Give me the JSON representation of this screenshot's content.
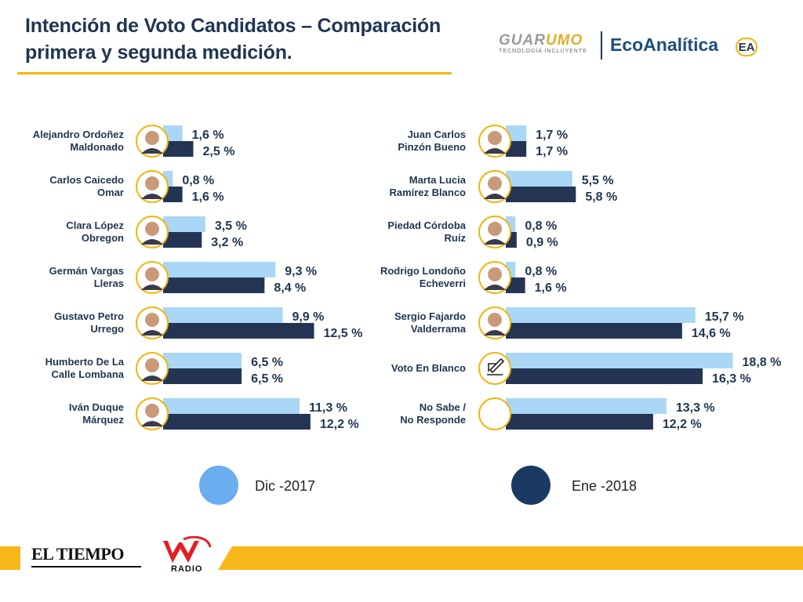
{
  "title": "Intención de Voto Candidatos – Comparación primera y segunda medición.",
  "logos": {
    "guarumo_main_a": "GUAR",
    "guarumo_main_b": "UMO",
    "guarumo_sub": "TECNOLOGÍA INCLUYENTE",
    "ecoanalitica": "EcoAnalítica",
    "ea": "EA",
    "eltiempo": "EL TIEMPO",
    "wradio": "RADIO"
  },
  "colors": {
    "dic": "#a9d7f5",
    "ene": "#243554",
    "accent": "#f2b40c"
  },
  "chart_data": {
    "type": "bar",
    "orientation": "horizontal",
    "title": "Intención de Voto Candidatos – Comparación primera y segunda medición.",
    "series_names": [
      "Dic -2017",
      "Ene -2018"
    ],
    "xlim": [
      0,
      20
    ],
    "unit": "%",
    "left_panel": [
      {
        "name": [
          "Alejandro Ordoñez",
          "Maldonado"
        ],
        "dic": 1.6,
        "ene": 2.5,
        "dic_label": "1,6 %",
        "ene_label": "2,5 %",
        "icon": "portrait-icon"
      },
      {
        "name": [
          "Carlos Caicedo",
          "Omar"
        ],
        "dic": 0.8,
        "ene": 1.6,
        "dic_label": "0,8 %",
        "ene_label": "1,6 %",
        "icon": "portrait-icon"
      },
      {
        "name": [
          "Clara López",
          "Obregon"
        ],
        "dic": 3.5,
        "ene": 3.2,
        "dic_label": "3,5 %",
        "ene_label": "3,2 %",
        "icon": "portrait-icon"
      },
      {
        "name": [
          "Germán Vargas",
          "Lleras"
        ],
        "dic": 9.3,
        "ene": 8.4,
        "dic_label": "9,3 %",
        "ene_label": "8,4 %",
        "icon": "portrait-icon"
      },
      {
        "name": [
          "Gustavo Petro",
          "Urrego"
        ],
        "dic": 9.9,
        "ene": 12.5,
        "dic_label": "9,9 %",
        "ene_label": "12,5 %",
        "icon": "portrait-icon"
      },
      {
        "name": [
          "Humberto De La",
          "Calle Lombana"
        ],
        "dic": 6.5,
        "ene": 6.5,
        "dic_label": "6,5 %",
        "ene_label": "6,5 %",
        "icon": "portrait-icon"
      },
      {
        "name": [
          "Iván Duque",
          "Márquez"
        ],
        "dic": 11.3,
        "ene": 12.2,
        "dic_label": "11,3 %",
        "ene_label": "12,2 %",
        "icon": "portrait-icon"
      }
    ],
    "right_panel": [
      {
        "name": [
          "Juan Carlos",
          "Pinzón Bueno"
        ],
        "dic": 1.7,
        "ene": 1.7,
        "dic_label": "1,7 %",
        "ene_label": "1,7 %",
        "icon": "portrait-icon"
      },
      {
        "name": [
          "Marta Lucia",
          "Ramírez Blanco"
        ],
        "dic": 5.5,
        "ene": 5.8,
        "dic_label": "5,5 %",
        "ene_label": "5,8 %",
        "icon": "portrait-icon"
      },
      {
        "name": [
          "Piedad Córdoba",
          "Ruíz"
        ],
        "dic": 0.8,
        "ene": 0.9,
        "dic_label": "0,8 %",
        "ene_label": "0,9 %",
        "icon": "portrait-icon"
      },
      {
        "name": [
          "Rodrigo Londoño",
          "Echeverri"
        ],
        "dic": 0.8,
        "ene": 1.6,
        "dic_label": "0,8 %",
        "ene_label": "1,6 %",
        "icon": "portrait-icon"
      },
      {
        "name": [
          "Sergio Fajardo",
          "Valderrama"
        ],
        "dic": 15.7,
        "ene": 14.6,
        "dic_label": "15,7 %",
        "ene_label": "14,6 %",
        "icon": "portrait-icon"
      },
      {
        "name": [
          "Voto En Blanco"
        ],
        "dic": 18.8,
        "ene": 16.3,
        "dic_label": "18,8 %",
        "ene_label": "16,3 %",
        "icon": "ballot-icon"
      },
      {
        "name": [
          "No Sabe /",
          "No Responde"
        ],
        "dic": 13.3,
        "ene": 12.2,
        "dic_label": "13,3 %",
        "ene_label": "12,2 %",
        "icon": "blank-circle-icon"
      }
    ]
  },
  "legend": {
    "dic": "Dic -2017",
    "ene": "Ene -2018"
  }
}
